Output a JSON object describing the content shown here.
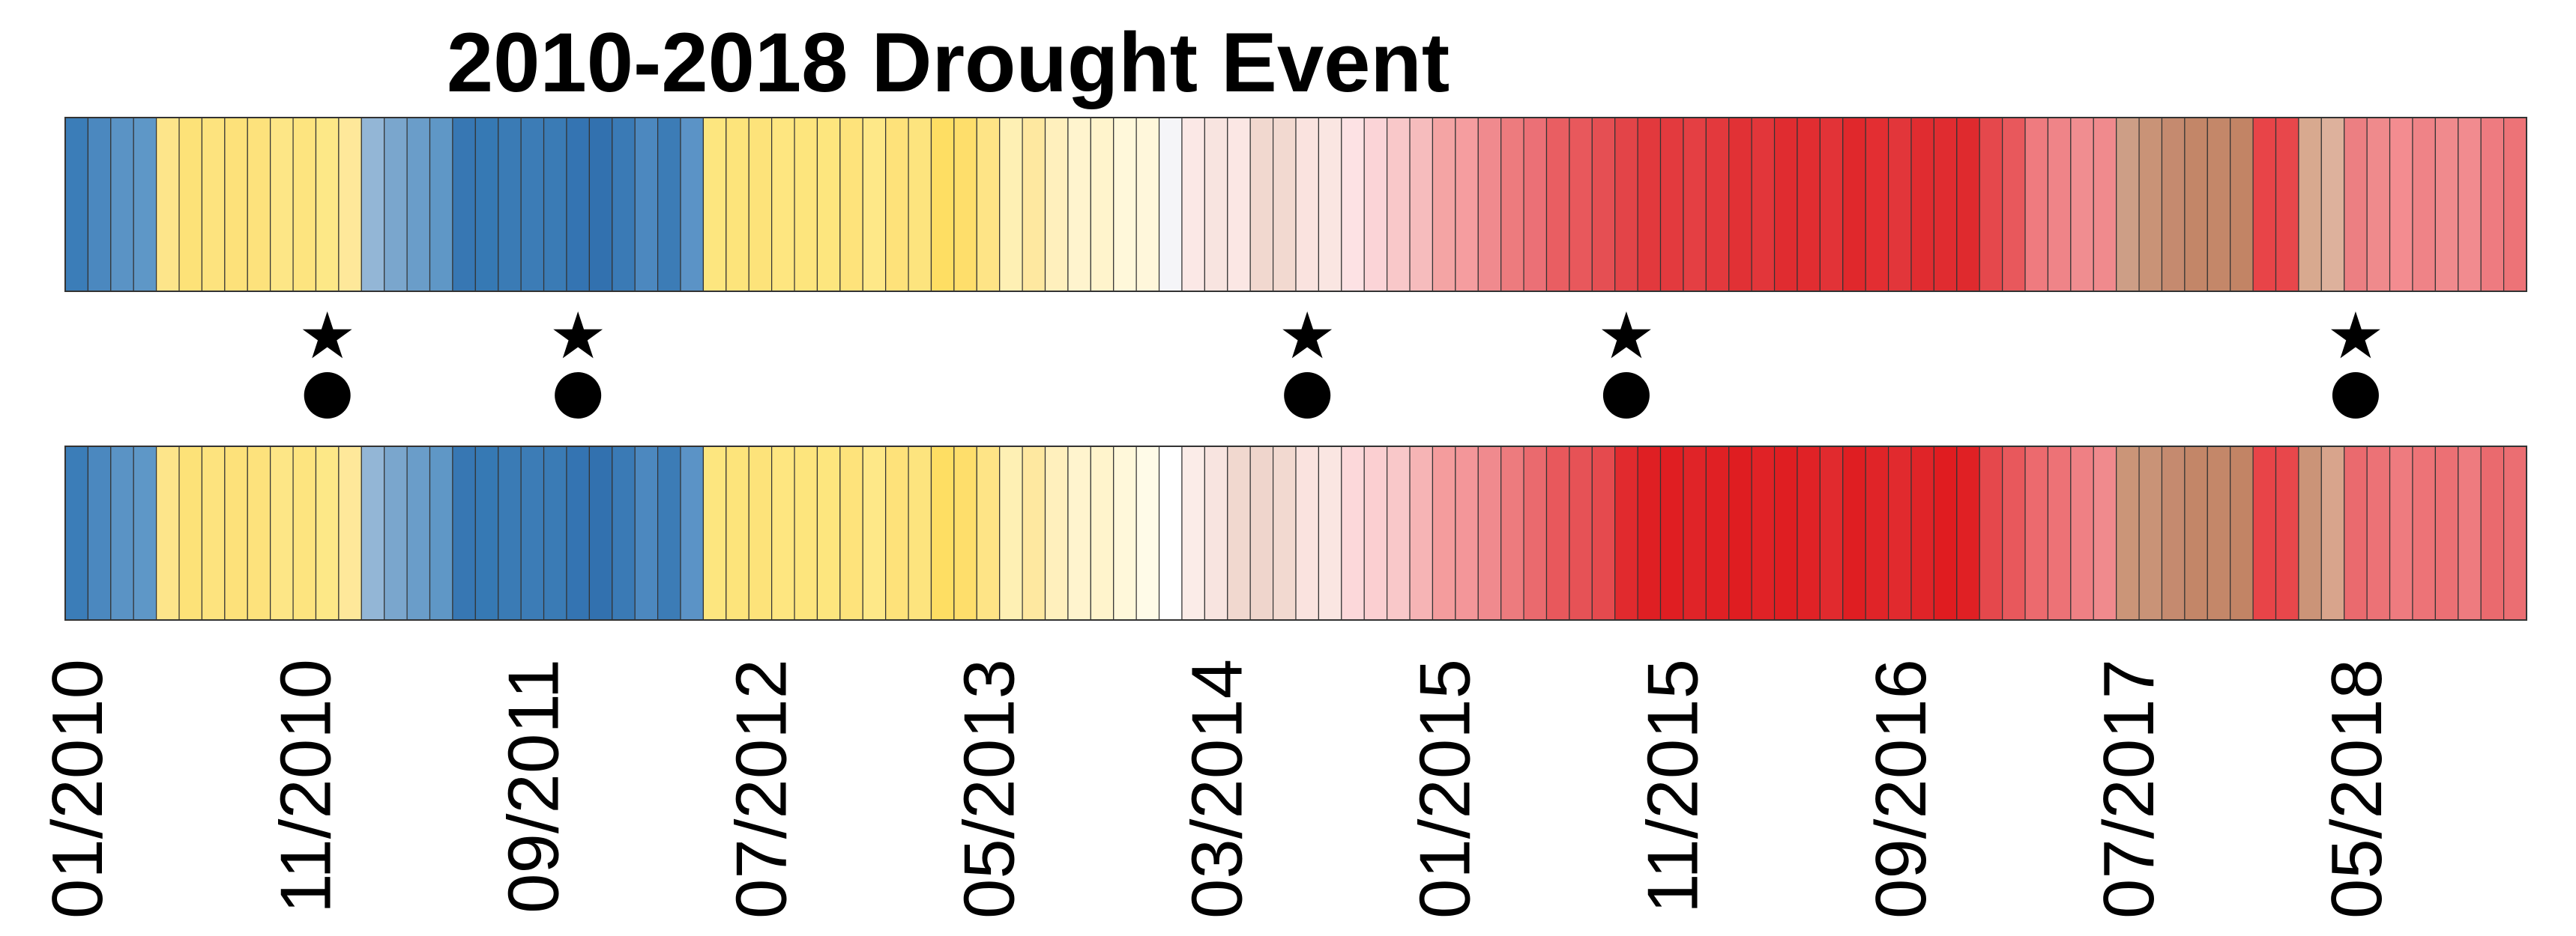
{
  "chart_data": {
    "type": "heatmap",
    "title": "2010-2018 Drought Event",
    "start_month": "01/2010",
    "months_count": 108,
    "rows": [
      {
        "colors": [
          "#3b7db8",
          "#4b88bf",
          "#5a93c5",
          "#5e97c7",
          "#fde58a",
          "#fde278",
          "#fde37e",
          "#fde17a",
          "#fde27c",
          "#fde686",
          "#fde47f",
          "#fde887",
          "#fee89a",
          "#93b6d6",
          "#7aa6cd",
          "#6a9dc9",
          "#5f97c6",
          "#3777b3",
          "#3679b4",
          "#3a7bb5",
          "#3c7cb6",
          "#3a7bb5",
          "#3474b2",
          "#3271af",
          "#3a7ab5",
          "#4c88bf",
          "#3c7cb6",
          "#5b93c6",
          "#fde67f",
          "#fde47b",
          "#fde37a",
          "#fee680",
          "#fde57d",
          "#fde67e",
          "#fee37b",
          "#fee888",
          "#fee27a",
          "#fde47e",
          "#fede63",
          "#fede6b",
          "#fee486",
          "#fef0b4",
          "#fee8a0",
          "#fff0bd",
          "#fff4ce",
          "#fff4cc",
          "#fff8da",
          "#fff7db",
          "#f5f5f8",
          "#fbe8e6",
          "#f8e4e0",
          "#fbe7e4",
          "#f1d8cf",
          "#f2d9d0",
          "#fae3df",
          "#fae6e2",
          "#fde2e4",
          "#fbd4d7",
          "#f9c8c9",
          "#f6bcbd",
          "#f4a4a4",
          "#f59d9f",
          "#f08a8e",
          "#ed7b7e",
          "#eb7076",
          "#e95e62",
          "#e8585c",
          "#e54f53",
          "#e34448",
          "#e2393d",
          "#e33a3e",
          "#e43f43",
          "#e3393d",
          "#e13135",
          "#e2363a",
          "#e02c30",
          "#e12d31",
          "#e23337",
          "#e0282c",
          "#e32e32",
          "#e2363a",
          "#e02c30",
          "#e02c30",
          "#df2a2e",
          "#e5484c",
          "#e8585c",
          "#ef7b7f",
          "#ef8488",
          "#f08d90",
          "#f08a8d",
          "#cd9e86",
          "#c99377",
          "#c58a6f",
          "#c38668",
          "#c48769",
          "#c28465",
          "#e84448",
          "#e8474b",
          "#d8a98f",
          "#ddb19c",
          "#ec7f82",
          "#ef8a8c",
          "#f38c90",
          "#ef8387",
          "#f08a8d",
          "#f18b8f",
          "#ee7b80",
          "#ed7377"
        ]
      },
      {
        "colors": [
          "#3b7db8",
          "#4b88bf",
          "#5a93c5",
          "#5e97c7",
          "#fde58a",
          "#fde278",
          "#fde37e",
          "#fde17a",
          "#fde27c",
          "#fde686",
          "#fde47f",
          "#fde887",
          "#fee89a",
          "#93b6d6",
          "#7aa6cd",
          "#6a9dc9",
          "#5f97c6",
          "#3777b3",
          "#3679b4",
          "#3a7bb5",
          "#3c7cb6",
          "#3a7bb5",
          "#3474b2",
          "#3271af",
          "#3a7ab5",
          "#4c88bf",
          "#3c7cb6",
          "#5b93c6",
          "#fde67f",
          "#fde47b",
          "#fde37a",
          "#fee680",
          "#fde57d",
          "#fde67e",
          "#fee37b",
          "#fee888",
          "#fee27a",
          "#fde47e",
          "#fede63",
          "#fede6b",
          "#fee486",
          "#fef0b4",
          "#fee8a0",
          "#fff0bd",
          "#fff4ce",
          "#fff4cc",
          "#fff8da",
          "#fffbe8",
          "#ffffff",
          "#fbece8",
          "#f8e4e0",
          "#f1d8cf",
          "#efd5cc",
          "#f2d9d0",
          "#fae3df",
          "#fae6e2",
          "#fcd8da",
          "#fbcfd1",
          "#f9c8c9",
          "#f6b4b5",
          "#f49c9d",
          "#f39699",
          "#f08a8e",
          "#ed7b7e",
          "#ea6a6e",
          "#e8585c",
          "#e65256",
          "#e54a4e",
          "#e12a2e",
          "#df1f23",
          "#e01e22",
          "#e02428",
          "#e02024",
          "#df1d21",
          "#e02226",
          "#df1e22",
          "#e02226",
          "#e12a2e",
          "#df1e22",
          "#e02428",
          "#e12a2e",
          "#e02428",
          "#e01c20",
          "#e02024",
          "#e5484c",
          "#e8585c",
          "#ec6a6e",
          "#ed7276",
          "#ef8084",
          "#f08a8d",
          "#cb9578",
          "#c99377",
          "#c58a6f",
          "#c38668",
          "#c48769",
          "#c28465",
          "#e84448",
          "#e8474b",
          "#cb9478",
          "#d8a48c",
          "#ea6a6e",
          "#ec7276",
          "#ee7b7f",
          "#ed7377",
          "#ec7074",
          "#ee7b7f",
          "#ea6a6e",
          "#eb6e72"
        ]
      }
    ],
    "tick_labels": [
      {
        "label": "01/2010",
        "month_index": 0
      },
      {
        "label": "11/2010",
        "month_index": 10
      },
      {
        "label": "09/2011",
        "month_index": 20
      },
      {
        "label": "07/2012",
        "month_index": 30
      },
      {
        "label": "05/2013",
        "month_index": 40
      },
      {
        "label": "03/2014",
        "month_index": 50
      },
      {
        "label": "01/2015",
        "month_index": 60
      },
      {
        "label": "11/2015",
        "month_index": 70
      },
      {
        "label": "09/2016",
        "month_index": 80
      },
      {
        "label": "07/2017",
        "month_index": 90
      },
      {
        "label": "05/2018",
        "month_index": 100
      }
    ],
    "markers": [
      {
        "month_index": 11,
        "symbols": [
          "star",
          "circle"
        ]
      },
      {
        "month_index": 22,
        "symbols": [
          "star",
          "circle"
        ]
      },
      {
        "month_index": 54,
        "symbols": [
          "star",
          "circle"
        ]
      },
      {
        "month_index": 68,
        "symbols": [
          "star",
          "circle"
        ]
      },
      {
        "month_index": 100,
        "symbols": [
          "star",
          "circle"
        ]
      }
    ]
  }
}
